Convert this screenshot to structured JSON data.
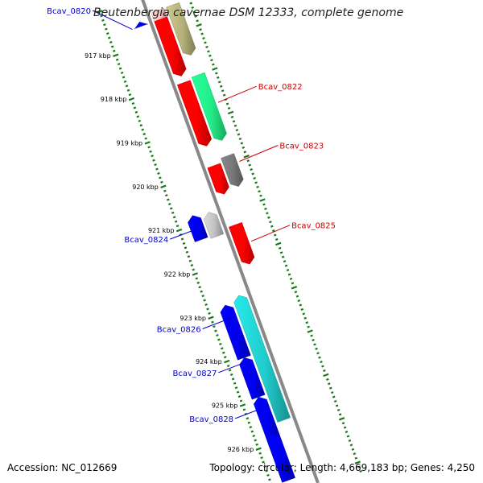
{
  "title": "Beutenbergia cavernae DSM 12333, complete genome",
  "accession_text": "Accession: NC_012669",
  "topology_text": "Topology: circular; Length: 4,669,183 bp; Genes: 4,250",
  "colors": {
    "backbone": "#888888",
    "forward_label": "#cc0000",
    "reverse_label": "#0000cc",
    "tick": "#1a7a1a"
  },
  "ruler": {
    "start_kbp": 916.4,
    "end_kbp": 926.85,
    "ticks": [
      {
        "kbp": 917,
        "label": "917 kbp"
      },
      {
        "kbp": 918,
        "label": "918 kbp"
      },
      {
        "kbp": 919,
        "label": "919 kbp"
      },
      {
        "kbp": 920,
        "label": "920 kbp"
      },
      {
        "kbp": 921,
        "label": "921 kbp"
      },
      {
        "kbp": 922,
        "label": "922 kbp"
      },
      {
        "kbp": 923,
        "label": "923 kbp"
      },
      {
        "kbp": 924,
        "label": "924 kbp"
      },
      {
        "kbp": 925,
        "label": "925 kbp"
      },
      {
        "kbp": 926,
        "label": "926 kbp"
      }
    ]
  },
  "features": [
    {
      "start": 916.5,
      "end": 916.6,
      "lane": -1,
      "color": "#0000ee",
      "dir": "fwd"
    },
    {
      "start": 916.4,
      "end": 916.7,
      "lane": 1,
      "color": "#ffc0c0",
      "dir": "rev"
    },
    {
      "start": 916.4,
      "end": 917.55,
      "lane": 2,
      "color": "#b5b07a",
      "dir": "rev"
    },
    {
      "start": 916.6,
      "end": 917.9,
      "lane": 1,
      "color": "#ff0000",
      "dir": "rev"
    },
    {
      "start": 918.05,
      "end": 919.5,
      "lane": 1,
      "color": "#ff0000",
      "dir": "rev"
    },
    {
      "start": 918.0,
      "end": 919.5,
      "lane": 2,
      "color": "#22ee88",
      "dir": "rev"
    },
    {
      "start": 919.95,
      "end": 920.6,
      "lane": 1,
      "color": "#ff0000",
      "dir": "rev"
    },
    {
      "start": 919.85,
      "end": 920.55,
      "lane": 2,
      "color": "#777777",
      "dir": "rev"
    },
    {
      "start": 920.85,
      "end": 921.4,
      "lane": -1,
      "color": "#c0c0c0",
      "dir": "fwd"
    },
    {
      "start": 920.8,
      "end": 921.35,
      "lane": -2,
      "color": "#0000ee",
      "dir": "fwd"
    },
    {
      "start": 921.3,
      "end": 922.2,
      "lane": 1,
      "color": "#ff0000",
      "dir": "rev"
    },
    {
      "start": 922.85,
      "end": 924.05,
      "lane": -2,
      "color": "#0000ee",
      "dir": "fwd"
    },
    {
      "start": 922.75,
      "end": 925.6,
      "lane": -1,
      "color": "#22cccc",
      "dir": "fwd"
    },
    {
      "start": 924.05,
      "end": 924.95,
      "lane": -2,
      "color": "#0000ee",
      "dir": "fwd"
    },
    {
      "start": 924.95,
      "end": 925.9,
      "lane": -2,
      "color": "#0000ee",
      "dir": "fwd"
    },
    {
      "start": 925.8,
      "end": 926.85,
      "lane": -2,
      "color": "#0000ee",
      "dir": "fwd"
    }
  ],
  "callouts": [
    {
      "text": "Bcav_0820",
      "strand": "reverse",
      "kbp": 916.6,
      "lane": -1
    },
    {
      "text": "Bcav_0822",
      "strand": "forward",
      "kbp": 918.7,
      "lane": 2
    },
    {
      "text": "Bcav_0823",
      "strand": "forward",
      "kbp": 920.05,
      "lane": 2
    },
    {
      "text": "Bcav_0825",
      "strand": "forward",
      "kbp": 921.75,
      "lane": 1
    },
    {
      "text": "Bcav_0824",
      "strand": "reverse",
      "kbp": 921.1,
      "lane": -1
    },
    {
      "text": "Bcav_0826",
      "strand": "reverse",
      "kbp": 923.15,
      "lane": -1
    },
    {
      "text": "Bcav_0827",
      "strand": "reverse",
      "kbp": 924.15,
      "lane": -1
    },
    {
      "text": "Bcav_0828",
      "strand": "reverse",
      "kbp": 925.2,
      "lane": -1
    }
  ]
}
